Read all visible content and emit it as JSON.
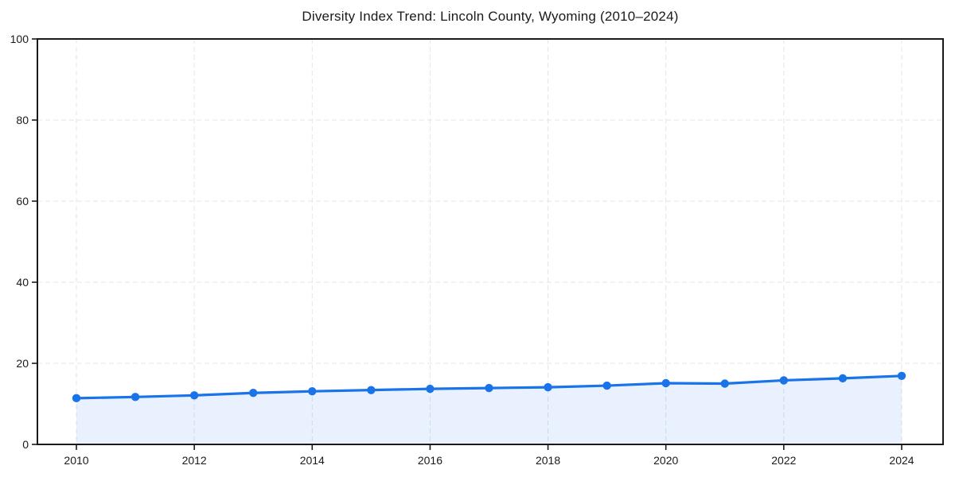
{
  "chart_data": {
    "type": "line",
    "title": "Diversity Index Trend: Lincoln County, Wyoming (2010–2024)",
    "xlabel": "",
    "ylabel": "",
    "x": [
      2010,
      2011,
      2012,
      2013,
      2014,
      2015,
      2016,
      2017,
      2018,
      2019,
      2020,
      2021,
      2022,
      2023,
      2024
    ],
    "series": [
      {
        "name": "Diversity Index",
        "values": [
          11.4,
          11.7,
          12.1,
          12.7,
          13.1,
          13.4,
          13.7,
          13.9,
          14.1,
          14.5,
          15.1,
          15.0,
          15.8,
          16.3,
          16.9
        ]
      }
    ],
    "xticks": [
      2010,
      2012,
      2014,
      2016,
      2018,
      2020,
      2022,
      2024
    ],
    "yticks": [
      0,
      20,
      40,
      60,
      80,
      100
    ],
    "xlim": [
      2010,
      2024
    ],
    "ylim": [
      0,
      100
    ],
    "grid": true,
    "grid_style": "dashed",
    "legend": false,
    "area_fill": true,
    "marker": "circle",
    "colors": {
      "line": "#1a73e8",
      "marker": "#1a73e8",
      "fill": "#1a73e8",
      "fill_opacity": 0.1,
      "grid": "#e4e4e4",
      "spine": "#1a1a1a",
      "tick_label": "#1a1a1a",
      "background": "#ffffff"
    }
  }
}
